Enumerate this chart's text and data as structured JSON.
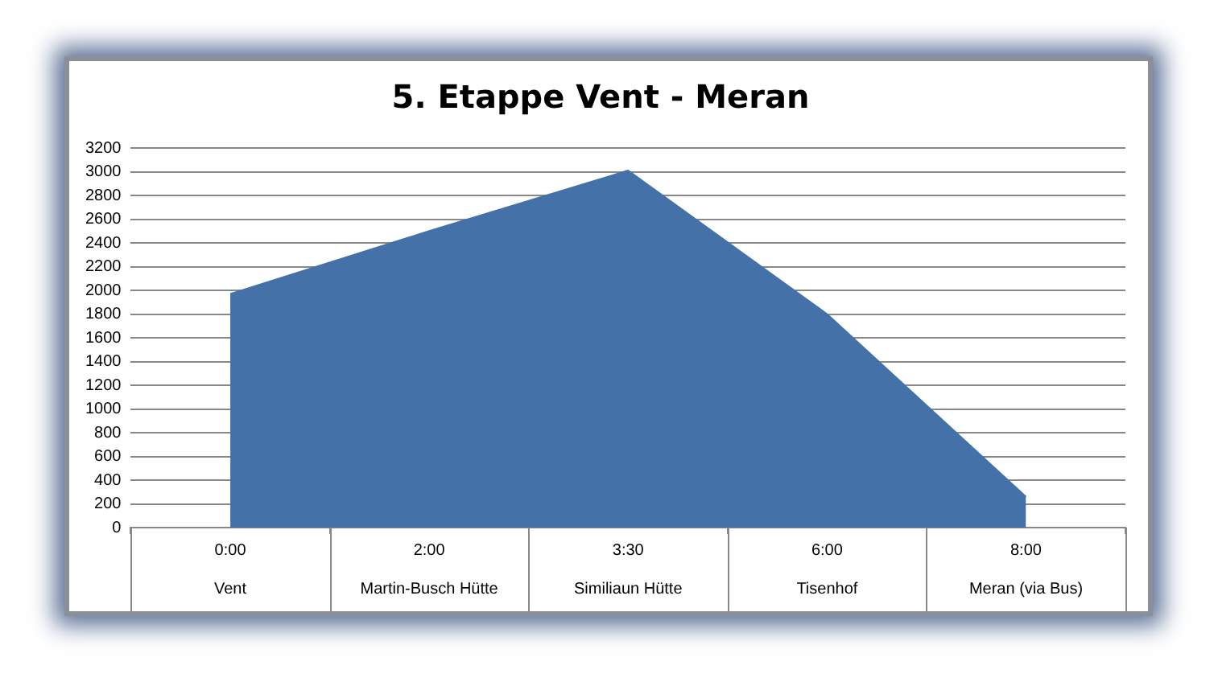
{
  "chart_data": {
    "type": "area",
    "title": "5. Etappe Vent - Meran",
    "categories": [
      "0:00\nVent",
      "2:00\nMartin-Busch Hütte",
      "3:30\nSimiliaun Hütte",
      "6:00\nTisenhof",
      "8:00\nMeran (via Bus)"
    ],
    "series": [
      {
        "color": "#4472a8",
        "values": [
          1970,
          2500,
          3010,
          1800,
          260
        ]
      }
    ],
    "ylim": [
      0,
      3200
    ],
    "yticks": [
      0,
      200,
      400,
      600,
      800,
      1000,
      1200,
      1400,
      1600,
      1800,
      2000,
      2200,
      2400,
      2600,
      2800,
      3000,
      3200
    ],
    "grid": "y",
    "legend": false
  }
}
